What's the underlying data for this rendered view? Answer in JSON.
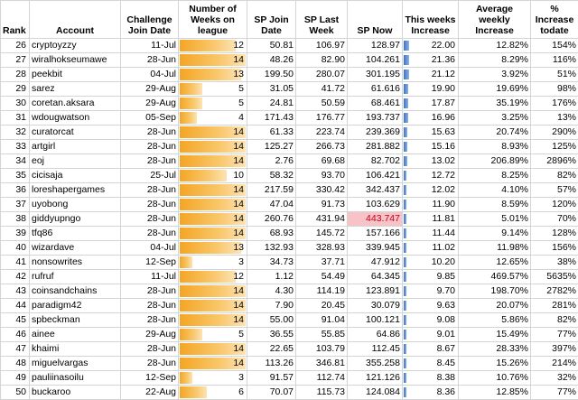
{
  "headers": {
    "rank": "Rank",
    "account": "Account",
    "join_date": "Challenge Join Date",
    "weeks": "Number of Weeks on league",
    "sp_join": "SP Join Date",
    "sp_last": "SP Last Week",
    "sp_now": "SP Now",
    "inc": "This weeks Increase",
    "avg": "Average weekly Increase",
    "pct": "% Increase todate"
  },
  "weeks_max": 14,
  "inc_max": 22.0,
  "highlight_color": "#f8c3c6",
  "bar_color": "#f5a523",
  "inc_bar_color": "#3b73c8",
  "rows": [
    {
      "rank": "26",
      "account": "cryptoyzzy",
      "join": "11-Jul",
      "weeks": "12",
      "sp_join": "50.81",
      "sp_last": "106.97",
      "sp_now": "128.97",
      "inc": "22.00",
      "avg": "12.82%",
      "pct": "154%",
      "hl": false
    },
    {
      "rank": "27",
      "account": "wiralhokseumawe",
      "join": "28-Jun",
      "weeks": "14",
      "sp_join": "48.26",
      "sp_last": "82.90",
      "sp_now": "104.261",
      "inc": "21.36",
      "avg": "8.29%",
      "pct": "116%",
      "hl": false
    },
    {
      "rank": "28",
      "account": "peekbit",
      "join": "04-Jul",
      "weeks": "13",
      "sp_join": "199.50",
      "sp_last": "280.07",
      "sp_now": "301.195",
      "inc": "21.12",
      "avg": "3.92%",
      "pct": "51%",
      "hl": false
    },
    {
      "rank": "29",
      "account": "sarez",
      "join": "29-Aug",
      "weeks": "5",
      "sp_join": "31.05",
      "sp_last": "41.72",
      "sp_now": "61.616",
      "inc": "19.90",
      "avg": "19.69%",
      "pct": "98%",
      "hl": false
    },
    {
      "rank": "30",
      "account": "coretan.aksara",
      "join": "29-Aug",
      "weeks": "5",
      "sp_join": "24.81",
      "sp_last": "50.59",
      "sp_now": "68.461",
      "inc": "17.87",
      "avg": "35.19%",
      "pct": "176%",
      "hl": false
    },
    {
      "rank": "31",
      "account": "wdougwatson",
      "join": "05-Sep",
      "weeks": "4",
      "sp_join": "171.43",
      "sp_last": "176.77",
      "sp_now": "193.737",
      "inc": "16.96",
      "avg": "3.25%",
      "pct": "13%",
      "hl": false
    },
    {
      "rank": "32",
      "account": "curatorcat",
      "join": "28-Jun",
      "weeks": "14",
      "sp_join": "61.33",
      "sp_last": "223.74",
      "sp_now": "239.369",
      "inc": "15.63",
      "avg": "20.74%",
      "pct": "290%",
      "hl": false
    },
    {
      "rank": "33",
      "account": "artgirl",
      "join": "28-Jun",
      "weeks": "14",
      "sp_join": "125.27",
      "sp_last": "266.73",
      "sp_now": "281.882",
      "inc": "15.16",
      "avg": "8.93%",
      "pct": "125%",
      "hl": false
    },
    {
      "rank": "34",
      "account": "eoj",
      "join": "28-Jun",
      "weeks": "14",
      "sp_join": "2.76",
      "sp_last": "69.68",
      "sp_now": "82.702",
      "inc": "13.02",
      "avg": "206.89%",
      "pct": "2896%",
      "hl": false
    },
    {
      "rank": "35",
      "account": "cicisaja",
      "join": "25-Jul",
      "weeks": "10",
      "sp_join": "58.32",
      "sp_last": "93.70",
      "sp_now": "106.421",
      "inc": "12.72",
      "avg": "8.25%",
      "pct": "82%",
      "hl": false
    },
    {
      "rank": "36",
      "account": "loreshapergames",
      "join": "28-Jun",
      "weeks": "14",
      "sp_join": "217.59",
      "sp_last": "330.42",
      "sp_now": "342.437",
      "inc": "12.02",
      "avg": "4.10%",
      "pct": "57%",
      "hl": false
    },
    {
      "rank": "37",
      "account": "uyobong",
      "join": "28-Jun",
      "weeks": "14",
      "sp_join": "47.04",
      "sp_last": "91.73",
      "sp_now": "103.629",
      "inc": "11.90",
      "avg": "8.59%",
      "pct": "120%",
      "hl": false
    },
    {
      "rank": "38",
      "account": "giddyupngo",
      "join": "28-Jun",
      "weeks": "14",
      "sp_join": "260.76",
      "sp_last": "431.94",
      "sp_now": "443.747",
      "inc": "11.81",
      "avg": "5.01%",
      "pct": "70%",
      "hl": true
    },
    {
      "rank": "39",
      "account": "tfq86",
      "join": "28-Jun",
      "weeks": "14",
      "sp_join": "68.93",
      "sp_last": "145.72",
      "sp_now": "157.166",
      "inc": "11.44",
      "avg": "9.14%",
      "pct": "128%",
      "hl": false
    },
    {
      "rank": "40",
      "account": "wizardave",
      "join": "04-Jul",
      "weeks": "13",
      "sp_join": "132.93",
      "sp_last": "328.93",
      "sp_now": "339.945",
      "inc": "11.02",
      "avg": "11.98%",
      "pct": "156%",
      "hl": false
    },
    {
      "rank": "41",
      "account": "nonsowrites",
      "join": "12-Sep",
      "weeks": "3",
      "sp_join": "34.73",
      "sp_last": "37.71",
      "sp_now": "47.912",
      "inc": "10.20",
      "avg": "12.65%",
      "pct": "38%",
      "hl": false
    },
    {
      "rank": "42",
      "account": "rufruf",
      "join": "11-Jul",
      "weeks": "12",
      "sp_join": "1.12",
      "sp_last": "54.49",
      "sp_now": "64.345",
      "inc": "9.85",
      "avg": "469.57%",
      "pct": "5635%",
      "hl": false
    },
    {
      "rank": "43",
      "account": "coinsandchains",
      "join": "28-Jun",
      "weeks": "14",
      "sp_join": "4.30",
      "sp_last": "114.19",
      "sp_now": "123.891",
      "inc": "9.70",
      "avg": "198.70%",
      "pct": "2782%",
      "hl": false
    },
    {
      "rank": "44",
      "account": "paradigm42",
      "join": "28-Jun",
      "weeks": "14",
      "sp_join": "7.90",
      "sp_last": "20.45",
      "sp_now": "30.079",
      "inc": "9.63",
      "avg": "20.07%",
      "pct": "281%",
      "hl": false
    },
    {
      "rank": "45",
      "account": "spbeckman",
      "join": "28-Jun",
      "weeks": "14",
      "sp_join": "55.00",
      "sp_last": "91.04",
      "sp_now": "100.121",
      "inc": "9.08",
      "avg": "5.86%",
      "pct": "82%",
      "hl": false
    },
    {
      "rank": "46",
      "account": "ainee",
      "join": "29-Aug",
      "weeks": "5",
      "sp_join": "36.55",
      "sp_last": "55.85",
      "sp_now": "64.86",
      "inc": "9.01",
      "avg": "15.49%",
      "pct": "77%",
      "hl": false
    },
    {
      "rank": "47",
      "account": "khaimi",
      "join": "28-Jun",
      "weeks": "14",
      "sp_join": "22.65",
      "sp_last": "103.79",
      "sp_now": "112.45",
      "inc": "8.67",
      "avg": "28.33%",
      "pct": "397%",
      "hl": false
    },
    {
      "rank": "48",
      "account": "miguelvargas",
      "join": "28-Jun",
      "weeks": "14",
      "sp_join": "113.26",
      "sp_last": "346.81",
      "sp_now": "355.258",
      "inc": "8.45",
      "avg": "15.26%",
      "pct": "214%",
      "hl": false
    },
    {
      "rank": "49",
      "account": "pauliinasoilu",
      "join": "12-Sep",
      "weeks": "3",
      "sp_join": "91.57",
      "sp_last": "112.74",
      "sp_now": "121.126",
      "inc": "8.38",
      "avg": "10.76%",
      "pct": "32%",
      "hl": false
    },
    {
      "rank": "50",
      "account": "buckaroo",
      "join": "22-Aug",
      "weeks": "6",
      "sp_join": "70.07",
      "sp_last": "115.73",
      "sp_now": "124.084",
      "inc": "8.36",
      "avg": "12.85%",
      "pct": "77%",
      "hl": false
    }
  ]
}
